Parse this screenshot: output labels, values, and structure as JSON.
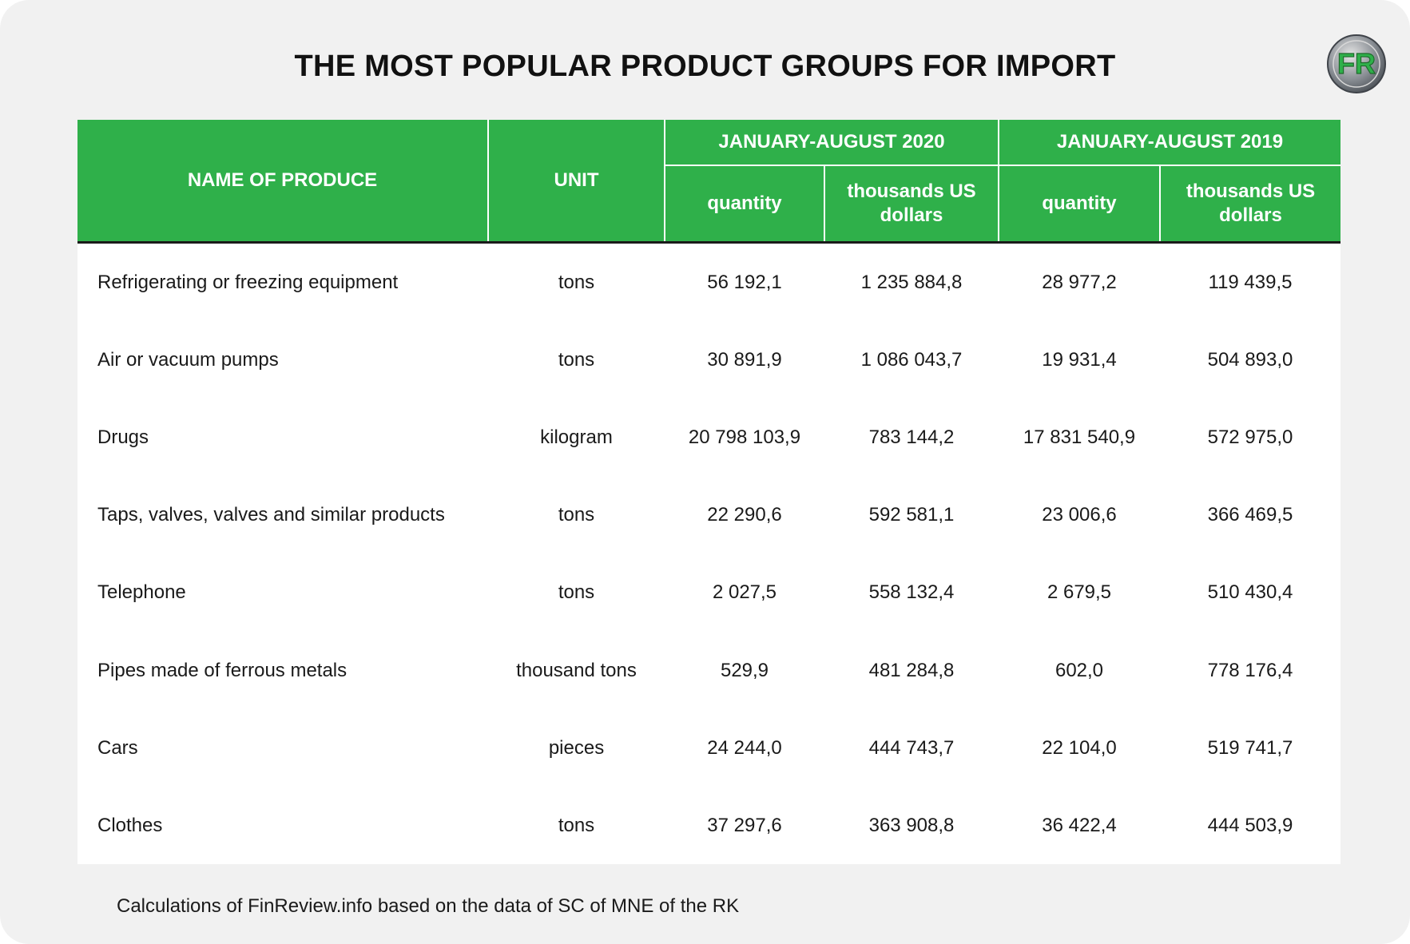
{
  "title": "THE MOST POPULAR PRODUCT GROUPS FOR IMPORT",
  "logo": {
    "text": "FR",
    "icon": "finreview-logo"
  },
  "colors": {
    "header_green": "#2fb04a",
    "background": "#f1f1f1"
  },
  "source": "Calculations of FinReview.info based on the data of SC of MNE of the RK",
  "chart_data": {
    "type": "table",
    "title": "THE MOST POPULAR PRODUCT GROUPS FOR IMPORT",
    "header": {
      "name": "NAME OF PRODUCE",
      "unit": "UNIT",
      "period_2020": "JANUARY-AUGUST 2020",
      "period_2019": "JANUARY-AUGUST 2019",
      "quantity": "quantity",
      "value": "thousands US dollars"
    },
    "rows": [
      {
        "name": "Refrigerating or freezing equipment",
        "unit": "tons",
        "q2020": "56 192,1",
        "v2020": "1 235 884,8",
        "q2019": "28 977,2",
        "v2019": "119 439,5"
      },
      {
        "name": "Air or vacuum pumps",
        "unit": "tons",
        "q2020": "30 891,9",
        "v2020": "1 086 043,7",
        "q2019": "19 931,4",
        "v2019": "504 893,0"
      },
      {
        "name": "Drugs",
        "unit": "kilogram",
        "q2020": "20 798 103,9",
        "v2020": "783 144,2",
        "q2019": "17 831 540,9",
        "v2019": "572 975,0"
      },
      {
        "name": "Taps, valves, valves and similar products",
        "unit": "tons",
        "q2020": "22 290,6",
        "v2020": "592 581,1",
        "q2019": "23 006,6",
        "v2019": "366 469,5"
      },
      {
        "name": "Telephone",
        "unit": "tons",
        "q2020": "2 027,5",
        "v2020": "558 132,4",
        "q2019": "2 679,5",
        "v2019": "510 430,4"
      },
      {
        "name": "Pipes made of ferrous metals",
        "unit": "thousand tons",
        "q2020": "529,9",
        "v2020": "481 284,8",
        "q2019": "602,0",
        "v2019": "778 176,4"
      },
      {
        "name": "Cars",
        "unit": "pieces",
        "q2020": "24 244,0",
        "v2020": "444 743,7",
        "q2019": "22 104,0",
        "v2019": "519 741,7"
      },
      {
        "name": "Clothes",
        "unit": "tons",
        "q2020": "37 297,6",
        "v2020": "363 908,8",
        "q2019": "36 422,4",
        "v2019": "444 503,9"
      }
    ]
  }
}
